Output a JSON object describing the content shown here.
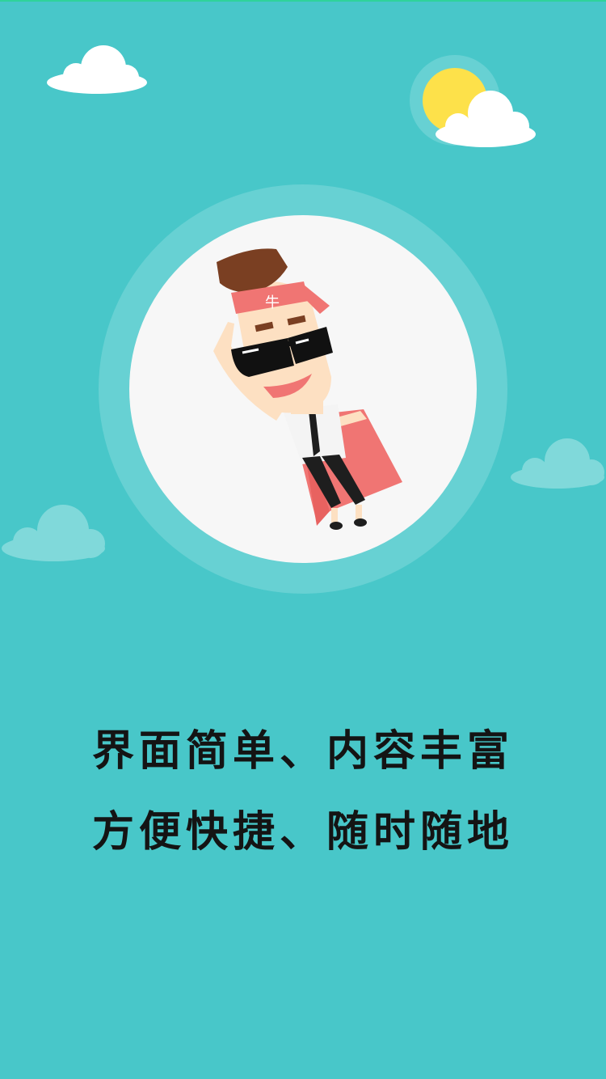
{
  "splash": {
    "headband_char": "牛",
    "tagline": {
      "line1": "界面简单、内容丰富",
      "line2": "方便快捷、随时随地"
    }
  },
  "colors": {
    "background": "#48c7c9",
    "halo": "#67d1d3",
    "disc": "#f7f7f7",
    "sun": "#fde14a",
    "cloud_white": "#ffffff",
    "cloud_faint": "#80d9da",
    "headband": "#f07573",
    "cape": "#f07573",
    "hair": "#7a3f22",
    "skin": "#fde0c2",
    "text": "#141414"
  },
  "icons": [
    "cloud-icon",
    "sun-icon",
    "superhero-illustration"
  ]
}
